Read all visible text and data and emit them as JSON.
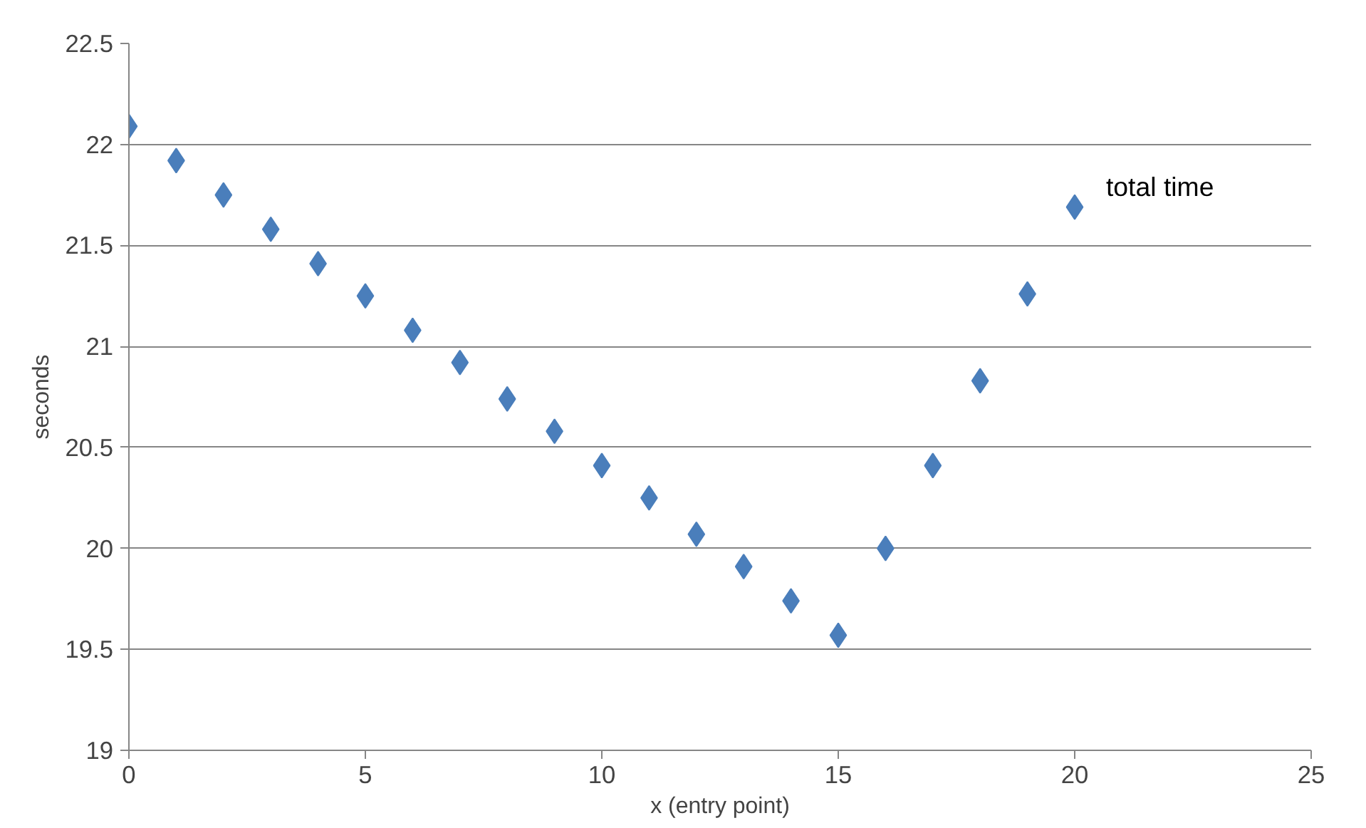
{
  "chart_data": {
    "type": "scatter",
    "xlabel": "x (entry point)",
    "ylabel": "seconds",
    "x": [
      0,
      1,
      2,
      3,
      4,
      5,
      6,
      7,
      8,
      9,
      10,
      11,
      12,
      13,
      14,
      15,
      16,
      17,
      18,
      19,
      20
    ],
    "series": [
      {
        "name": "total time",
        "color": "#4a7ebb",
        "values": [
          22.09,
          21.92,
          21.75,
          21.58,
          21.41,
          21.25,
          21.08,
          20.92,
          20.74,
          20.58,
          20.41,
          20.25,
          20.07,
          19.91,
          19.74,
          19.57,
          20.0,
          20.41,
          20.83,
          21.26,
          21.69
        ]
      }
    ],
    "xlim": [
      0,
      25
    ],
    "xticks": [
      0,
      5,
      10,
      15,
      20,
      25
    ],
    "ylim": [
      19,
      22.5
    ],
    "yticks": [
      19,
      19.5,
      20,
      20.5,
      21,
      21.5,
      22,
      22.5
    ],
    "grid": "y",
    "marker": "diamond",
    "legend": false
  }
}
